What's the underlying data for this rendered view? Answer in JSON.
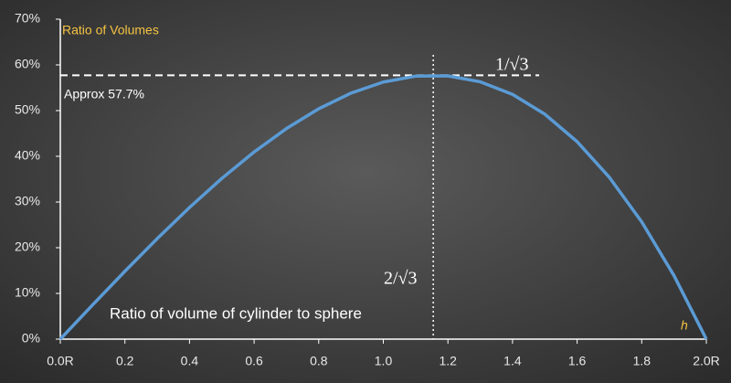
{
  "chart_data": {
    "type": "line",
    "title": "Ratio of Volumes",
    "x_label": "h",
    "annotations": [
      "Approx 57.7%",
      "1/√3",
      "2/√3",
      "Ratio of volume of cylinder to sphere"
    ],
    "reference_lines": {
      "y": 57.735,
      "x": 1.1547
    },
    "x": [
      0,
      0.1,
      0.2,
      0.3,
      0.4,
      0.5,
      0.6,
      0.7,
      0.8,
      0.9,
      1.0,
      1.1,
      1.2,
      1.3,
      1.4,
      1.5,
      1.6,
      1.7,
      1.8,
      1.9,
      2.0
    ],
    "values": [
      0,
      7.48,
      14.85,
      21.99,
      28.8,
      35.16,
      40.95,
      46.07,
      50.4,
      53.83,
      56.25,
      57.54,
      57.6,
      56.31,
      53.55,
      49.22,
      43.2,
      35.38,
      25.65,
      13.89,
      0
    ],
    "color": "#5b9bd5",
    "xlim": [
      0,
      2
    ],
    "ylim": [
      0,
      70
    ],
    "xticks": [
      {
        "value": 0,
        "label": "0.0R"
      },
      0.2,
      0.4,
      0.6,
      0.8,
      {
        "value": 1,
        "label": "1.0"
      },
      1.2,
      1.4,
      1.6,
      1.8,
      {
        "value": 2,
        "label": "2.0R"
      }
    ],
    "yticks": [
      {
        "value": 0,
        "label": "0%"
      },
      {
        "value": 10,
        "label": "10%"
      },
      {
        "value": 20,
        "label": "20%"
      },
      {
        "value": 30,
        "label": "30%"
      },
      {
        "value": 40,
        "label": "40%"
      },
      {
        "value": 50,
        "label": "50%"
      },
      {
        "value": 60,
        "label": "60%"
      },
      {
        "value": 70,
        "label": "70%"
      }
    ]
  }
}
